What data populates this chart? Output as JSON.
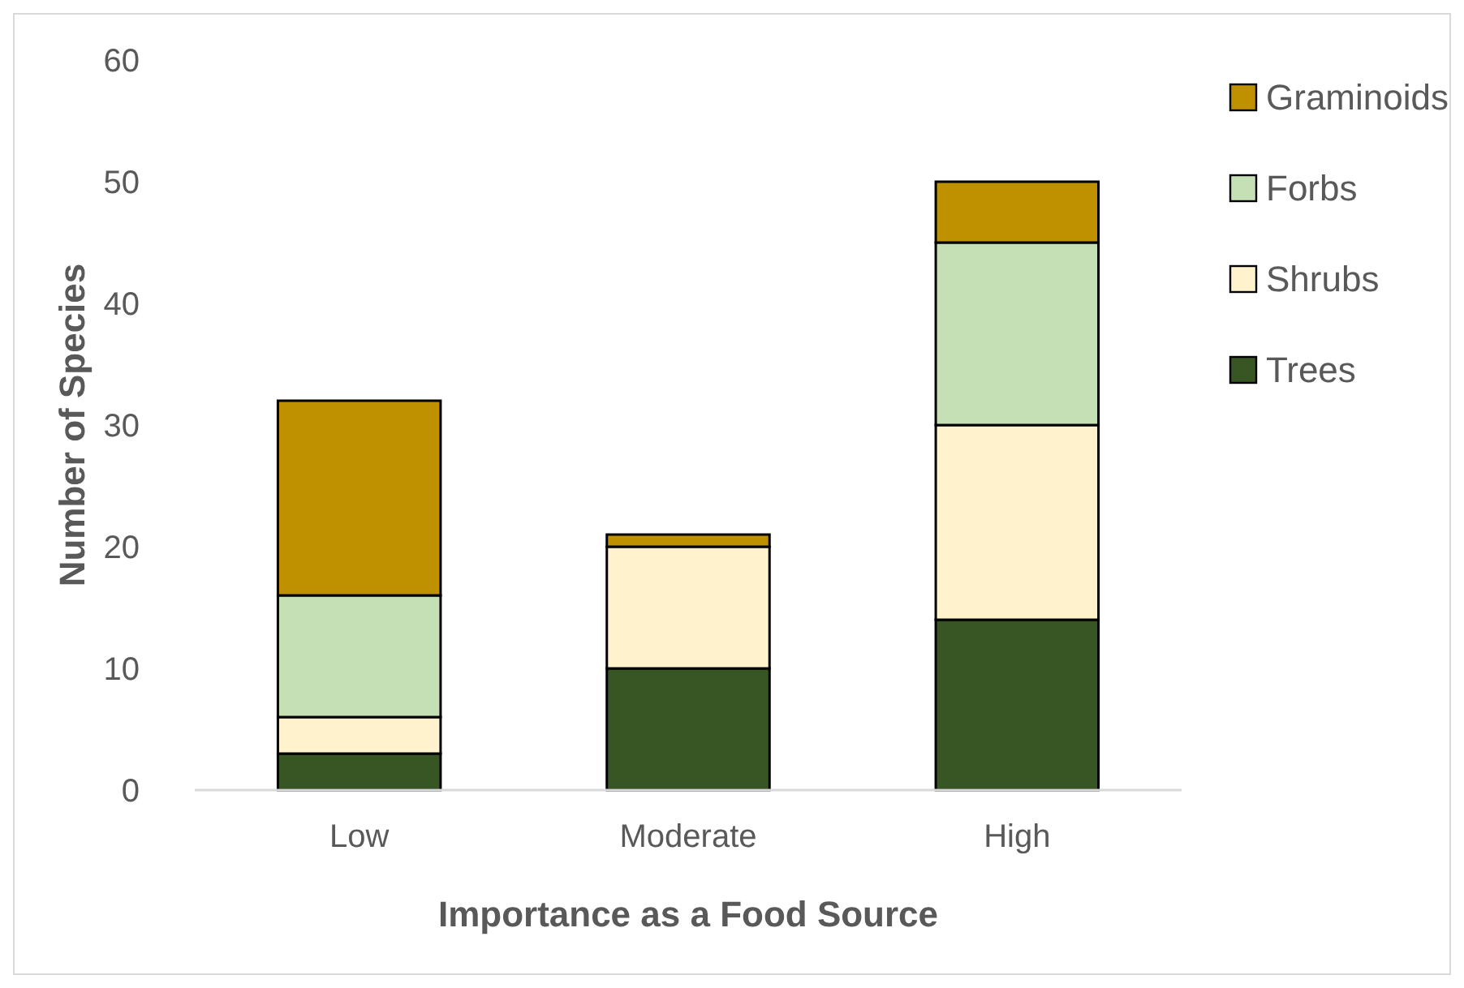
{
  "chart_data": {
    "type": "bar",
    "stacked": true,
    "xlabel": "Importance as a Food Source",
    "ylabel": "Number of Species",
    "categories": [
      "Low",
      "Moderate",
      "High"
    ],
    "series": [
      {
        "name": "Trees",
        "color": "#375623",
        "values": [
          3,
          10,
          14
        ]
      },
      {
        "name": "Shrubs",
        "color": "#fff2cc",
        "values": [
          3,
          10,
          16
        ]
      },
      {
        "name": "Forbs",
        "color": "#c5e0b4",
        "values": [
          10,
          0,
          15
        ]
      },
      {
        "name": "Graminoids",
        "color": "#bf9000",
        "values": [
          16,
          1,
          5
        ]
      }
    ],
    "ylim": [
      0,
      60
    ],
    "yticks": [
      0,
      10,
      20,
      30,
      40,
      50,
      60
    ],
    "grid": false,
    "legend": "right"
  }
}
